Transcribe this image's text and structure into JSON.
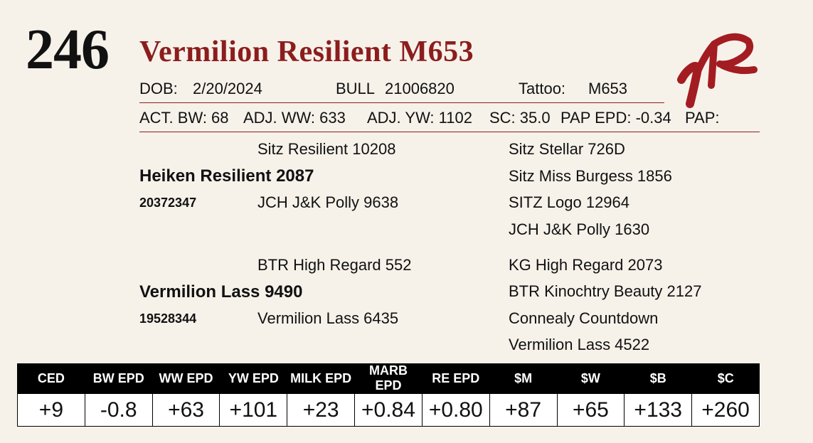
{
  "lot": {
    "number": "246",
    "name": "Vermilion Resilient M653"
  },
  "logo": {
    "name": "vr-brand-logo",
    "color": "#a31c22"
  },
  "info": {
    "dob_label": "DOB:",
    "dob": "2/20/2024",
    "sex": "BULL",
    "registration": "21006820",
    "tattoo_label": "Tattoo:",
    "tattoo": "M653"
  },
  "performance": {
    "bw": "ACT. BW: 68",
    "ww": "ADJ. WW: 633",
    "yw": "ADJ. YW: 1102",
    "sc": "SC: 35.0",
    "pap_epd": "PAP EPD: -0.34",
    "pap": "PAP:"
  },
  "pedigree": {
    "sire": {
      "name": "Heiken Resilient 2087",
      "reg": "20372347",
      "sire": "Sitz Resilient 10208",
      "dam": "JCH J&K Polly 9638",
      "gp": [
        "Sitz Stellar 726D",
        "Sitz Miss Burgess 1856",
        "SITZ Logo 12964",
        "JCH J&K Polly 1630"
      ]
    },
    "dam": {
      "name": "Vermilion Lass 9490",
      "reg": "19528344",
      "sire": "BTR High Regard 552",
      "dam": "Vermilion Lass 6435",
      "gp": [
        "KG High Regard 2073",
        "BTR Kinochtry Beauty 2127",
        "Connealy Countdown",
        "Vermilion Lass 4522"
      ]
    }
  },
  "epd": {
    "headers": [
      "CED",
      "BW EPD",
      "WW EPD",
      "YW EPD",
      "MILK EPD",
      "MARB EPD",
      "RE EPD",
      "$M",
      "$W",
      "$B",
      "$C"
    ],
    "values": [
      "+9",
      "-0.8",
      "+63",
      "+101",
      "+23",
      "+0.84",
      "+0.80",
      "+87",
      "+65",
      "+133",
      "+260"
    ]
  }
}
